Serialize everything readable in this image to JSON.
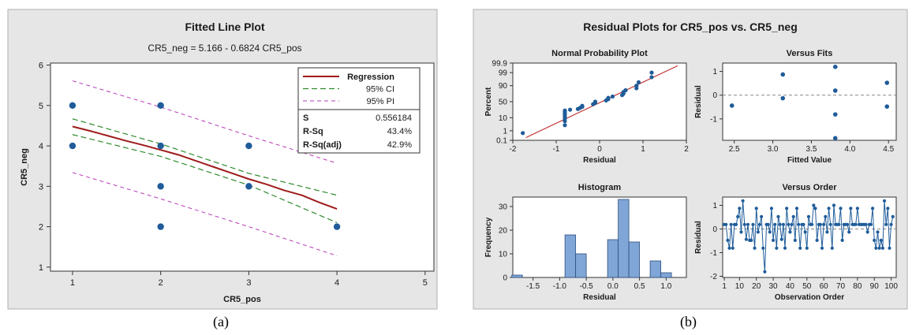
{
  "chart_data": [
    {
      "type": "scatter",
      "title": "Fitted Line Plot",
      "subtitle": "CR5_neg = 5.166 - 0.6824 CR5_pos",
      "xlabel": "CR5_pos",
      "ylabel": "CR5_neg",
      "xlim": [
        0.75,
        5.1
      ],
      "ylim": [
        0.9,
        6.05
      ],
      "x_ticks": [
        1,
        2,
        3,
        4,
        5
      ],
      "y_ticks": [
        1,
        2,
        3,
        4,
        5,
        6
      ],
      "points": [
        [
          1,
          5
        ],
        [
          1,
          4
        ],
        [
          2,
          5
        ],
        [
          2,
          4
        ],
        [
          2,
          3
        ],
        [
          2,
          2
        ],
        [
          3,
          4
        ],
        [
          3,
          3
        ],
        [
          4,
          2
        ]
      ],
      "regression": {
        "name": "Regression",
        "intercept": 5.166,
        "slope": -0.6824
      },
      "fit_line": [
        [
          1,
          4.48
        ],
        [
          1.2,
          4.37
        ],
        [
          1.4,
          4.25
        ],
        [
          1.6,
          4.13
        ],
        [
          1.8,
          4.02
        ],
        [
          2,
          3.9
        ],
        [
          2.2,
          3.78
        ],
        [
          2.4,
          3.63
        ],
        [
          2.6,
          3.48
        ],
        [
          2.8,
          3.33
        ],
        [
          3,
          3.18
        ],
        [
          3.2,
          3.05
        ],
        [
          3.4,
          2.9
        ],
        [
          3.6,
          2.78
        ],
        [
          3.8,
          2.6
        ],
        [
          4,
          2.44
        ]
      ],
      "ci": {
        "name": "95% CI",
        "upper": [
          [
            1,
            4.67
          ],
          [
            2,
            4.05
          ],
          [
            3,
            3.32
          ],
          [
            4,
            2.78
          ]
        ],
        "lower": [
          [
            1,
            4.28
          ],
          [
            2,
            3.74
          ],
          [
            3,
            3.03
          ],
          [
            4,
            2.1
          ]
        ]
      },
      "pi": {
        "name": "95% PI",
        "upper": [
          [
            1,
            5.61
          ],
          [
            2,
            4.96
          ],
          [
            3,
            4.25
          ],
          [
            4,
            3.57
          ]
        ],
        "lower": [
          [
            1,
            3.34
          ],
          [
            2,
            2.69
          ],
          [
            3,
            2.0
          ],
          [
            4,
            1.28
          ]
        ]
      },
      "stats": [
        {
          "label": "S",
          "value": "0.556184"
        },
        {
          "label": "R-Sq",
          "value": "43.4%"
        },
        {
          "label": "R-Sq(adj)",
          "value": "42.9%"
        }
      ],
      "colors": {
        "regression": "#9e1b1b",
        "ci": "#2e8b2e",
        "pi": "#b83ab8",
        "points": "#1f5c99",
        "background": "#e6e6e6"
      }
    },
    {
      "title": "Residual Plots for CR5_pos vs. CR5_neg",
      "panels": [
        {
          "type": "scatter",
          "title": "Normal Probability Plot",
          "xlabel": "Residual",
          "ylabel": "Percent",
          "xlim": [
            -2,
            2
          ],
          "x_ticks": [
            "-2",
            "-1",
            "0",
            "1",
            "2"
          ],
          "y_ticks": [
            "0.1",
            "1",
            "10",
            "50",
            "90",
            "99",
            "99.9"
          ],
          "y_tick_values": [
            0.1,
            1,
            10,
            50,
            90,
            99,
            99.9
          ],
          "y_scale": "normal-probability",
          "points": [
            [
              -1.77,
              0.6
            ],
            [
              -0.8,
              3
            ],
            [
              -0.8,
              6
            ],
            [
              -0.8,
              9
            ],
            [
              -0.8,
              12
            ],
            [
              -0.8,
              15
            ],
            [
              -0.8,
              18
            ],
            [
              -0.8,
              21
            ],
            [
              -0.8,
              24
            ],
            [
              -0.68,
              26
            ],
            [
              -0.5,
              28
            ],
            [
              -0.45,
              31
            ],
            [
              -0.4,
              34
            ],
            [
              -0.4,
              37
            ],
            [
              -0.15,
              42
            ],
            [
              -0.1,
              46
            ],
            [
              -0.1,
              50
            ],
            [
              0.15,
              54
            ],
            [
              0.2,
              58
            ],
            [
              0.2,
              62
            ],
            [
              0.3,
              66
            ],
            [
              0.52,
              70
            ],
            [
              0.55,
              74
            ],
            [
              0.55,
              78
            ],
            [
              0.6,
              82
            ],
            [
              0.85,
              86
            ],
            [
              0.85,
              90
            ],
            [
              0.9,
              94
            ],
            [
              1.2,
              97.5
            ],
            [
              1.2,
              99
            ]
          ],
          "fit_line": [
            [
              -1.7,
              0.2
            ],
            [
              1.8,
              99.8
            ]
          ]
        },
        {
          "type": "scatter",
          "title": "Versus Fits",
          "xlabel": "Fitted Value",
          "ylabel": "Residual",
          "xlim": [
            2.35,
            4.6
          ],
          "ylim": [
            -1.9,
            1.35
          ],
          "x_ticks": [
            2.5,
            3.0,
            3.5,
            4.0,
            4.5
          ],
          "y_ticks": [
            -1,
            0,
            1
          ],
          "reference_y": 0,
          "points": [
            [
              2.47,
              -0.44
            ],
            [
              3.13,
              0.87
            ],
            [
              3.13,
              -0.13
            ],
            [
              3.81,
              1.19
            ],
            [
              3.81,
              0.19
            ],
            [
              3.81,
              -0.81
            ],
            [
              3.81,
              -1.81
            ],
            [
              4.48,
              0.52
            ],
            [
              4.48,
              -0.48
            ]
          ]
        },
        {
          "type": "bar",
          "title": "Histogram",
          "xlabel": "Residual",
          "ylabel": "Frequency",
          "xlim": [
            -1.88,
            1.38
          ],
          "ylim": [
            0,
            34
          ],
          "x_ticks": [
            "-1.5",
            "-1.0",
            "-0.5",
            "0.0",
            "0.5",
            "1.0"
          ],
          "x_tick_values": [
            -1.5,
            -1.0,
            -0.5,
            0.0,
            0.5,
            1.0
          ],
          "y_ticks": [
            0,
            10,
            20,
            30
          ],
          "bin_width": 0.2,
          "bins": [
            [
              -1.8,
              1
            ],
            [
              -1.6,
              0
            ],
            [
              -1.4,
              0
            ],
            [
              -1.2,
              0
            ],
            [
              -1.0,
              0
            ],
            [
              -0.8,
              18
            ],
            [
              -0.6,
              10
            ],
            [
              -0.4,
              0
            ],
            [
              -0.2,
              0
            ],
            [
              0.0,
              16
            ],
            [
              0.2,
              33
            ],
            [
              0.4,
              15
            ],
            [
              0.6,
              0
            ],
            [
              0.8,
              7
            ],
            [
              1.0,
              2
            ]
          ]
        },
        {
          "type": "line",
          "title": "Versus Order",
          "xlabel": "Observation Order",
          "ylabel": "Residual",
          "xlim": [
            0,
            103
          ],
          "ylim": [
            -2.05,
            1.35
          ],
          "x_ticks": [
            1,
            10,
            20,
            30,
            40,
            50,
            60,
            70,
            80,
            90,
            100
          ],
          "y_ticks": [
            -2,
            -1,
            0,
            1
          ],
          "reference_y": 0,
          "values": [
            0.19,
            0.19,
            -0.48,
            -0.81,
            0.19,
            -0.81,
            0.19,
            0.19,
            0.52,
            0.87,
            -0.13,
            1.19,
            0.19,
            -0.44,
            0.19,
            -0.48,
            -0.48,
            0.19,
            -0.81,
            0.87,
            -0.13,
            0.19,
            0.52,
            -0.81,
            -1.81,
            0.19,
            0.19,
            -0.13,
            0.87,
            -0.48,
            0.19,
            -0.81,
            0.52,
            0.19,
            -0.44,
            0.19,
            -0.81,
            0.87,
            0.19,
            -0.13,
            0.19,
            0.52,
            -0.48,
            0.87,
            0.19,
            -0.81,
            0.19,
            0.19,
            -0.13,
            -0.81,
            0.52,
            0.19,
            0.19,
            1.0,
            0.87,
            -0.48,
            0.19,
            0.19,
            -0.81,
            0.19,
            0.52,
            -0.13,
            0.87,
            0.19,
            -0.81,
            1.0,
            0.19,
            0.19,
            0.19,
            0.87,
            -0.48,
            0.19,
            0.19,
            0.19,
            -0.13,
            0.87,
            0.19,
            0.19,
            0.19,
            0.87,
            0.19,
            0.19,
            0.19,
            0.19,
            0.19,
            -0.13,
            0.19,
            0.19,
            0.87,
            -0.48,
            -0.81,
            -0.13,
            -0.81,
            -0.48,
            -0.81,
            1.19,
            0.19,
            0.87,
            -0.81,
            0.19,
            0.52
          ],
          "colors": {
            "points": "#1f5c99"
          }
        }
      ],
      "colors": {
        "bars": "#7fa6d6",
        "fit": "#c03030",
        "points": "#1f5c99",
        "background": "#e6e6e6"
      }
    }
  ],
  "figure_labels": {
    "a": "(a)",
    "b": "(b)"
  }
}
